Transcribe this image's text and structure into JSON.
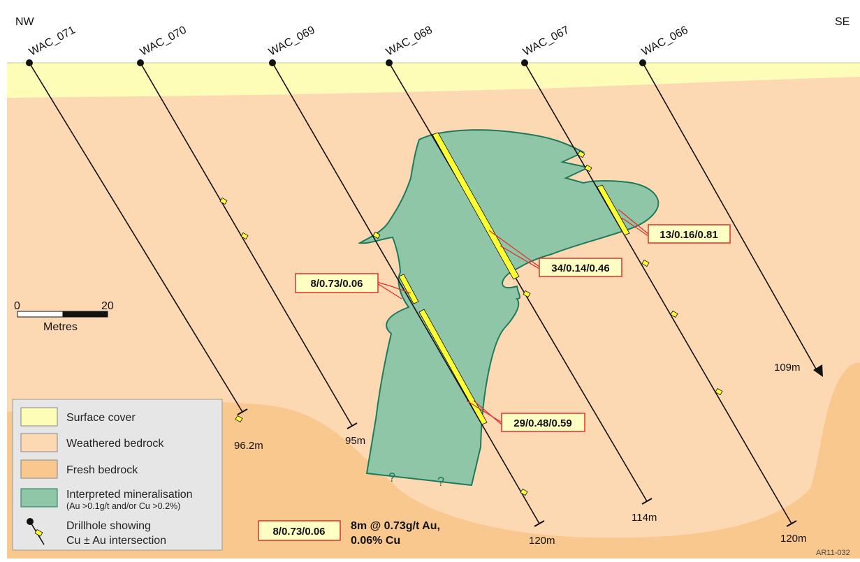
{
  "section": {
    "left_direction": "NW",
    "right_direction": "SE",
    "figure_code": "AR11-032"
  },
  "drillholes": [
    {
      "name": "WAC_071",
      "depth_label": "96.2m"
    },
    {
      "name": "WAC_070",
      "depth_label": "95m"
    },
    {
      "name": "WAC_069",
      "depth_label": "120m"
    },
    {
      "name": "WAC_068",
      "depth_label": "114m"
    },
    {
      "name": "WAC_067",
      "depth_label": "120m"
    },
    {
      "name": "WAC_066",
      "depth_label": "109m"
    }
  ],
  "intersections": [
    {
      "label": "13/0.16/0.81"
    },
    {
      "label": "34/0.14/0.46"
    },
    {
      "label": "8/0.73/0.06"
    },
    {
      "label": "29/0.48/0.59"
    }
  ],
  "uncertain_marks": [
    "?",
    "?"
  ],
  "scale_bar": {
    "start": "0",
    "end": "20",
    "unit": "Metres"
  },
  "legend": {
    "items": [
      {
        "label": "Surface cover",
        "color": "#fdfdb8"
      },
      {
        "label": "Weathered bedrock",
        "color": "#fdd9b3"
      },
      {
        "label": "Fresh bedrock",
        "color": "#f9c88e"
      },
      {
        "label": "Interpreted mineralisation",
        "sublabel": "(Au >0.1g/t and/or Cu >0.2%)",
        "color": "#8fc6a7"
      },
      {
        "label": "Drillhole showing",
        "sublabel": "Cu ± Au intersection",
        "color": "#ffff33"
      }
    ]
  },
  "key_example": {
    "box": "8/0.73/0.06",
    "line1": "8m @ 0.73g/t Au,",
    "line2": "0.06% Cu"
  },
  "colors": {
    "surface_cover": "#fdfdb8",
    "weathered_bedrock": "#fdd9b3",
    "fresh_bedrock": "#f9c88e",
    "mineralisation": "#8fc6a7",
    "mineralisation_edge": "#1f7a5c",
    "intersection": "#ffff33",
    "label_border": "#e0302a",
    "label_fill": "#ffffc4"
  }
}
